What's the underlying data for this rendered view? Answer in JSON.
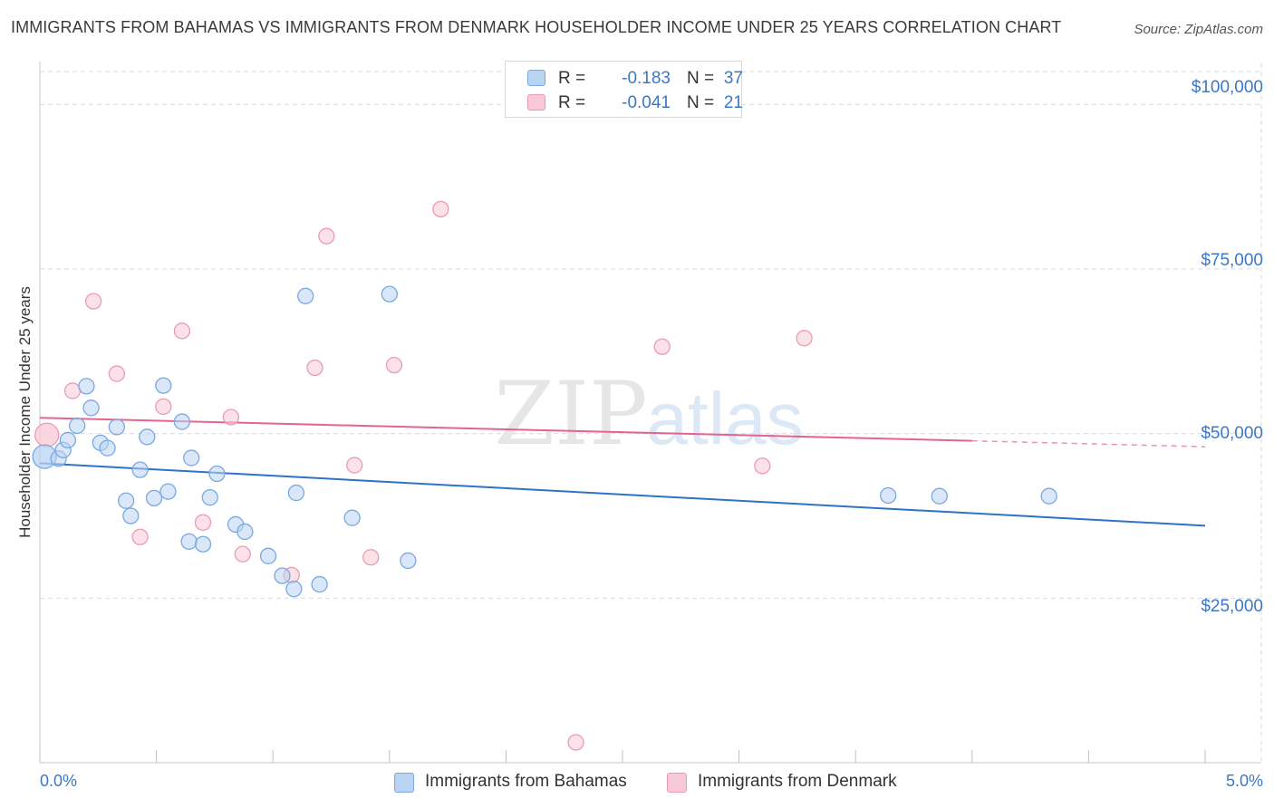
{
  "title": "IMMIGRANTS FROM BAHAMAS VS IMMIGRANTS FROM DENMARK HOUSEHOLDER INCOME UNDER 25 YEARS CORRELATION CHART",
  "source": "Source: ZipAtlas.com",
  "watermark": {
    "zip": "ZIP",
    "atlas": "atlas"
  },
  "legend": {
    "bahamas": {
      "r_label": "R =",
      "r_value": "-0.183",
      "n_label": "N =",
      "n_value": "37"
    },
    "denmark": {
      "r_label": "R =",
      "r_value": "-0.041",
      "n_label": "N =",
      "n_value": "21"
    }
  },
  "colors": {
    "bahamas_fill": "#b9d3f3",
    "bahamas_stroke": "#7aa8e0",
    "bahamas_line": "#2f72c8",
    "denmark_fill": "#f8c8d6",
    "denmark_stroke": "#ec9ab4",
    "denmark_line": "#e4638f",
    "grid": "#d9d9d9",
    "tick_label": "#3b78c4"
  },
  "chart_data": {
    "type": "scatter",
    "title": "IMMIGRANTS FROM BAHAMAS VS IMMIGRANTS FROM DENMARK HOUSEHOLDER INCOME UNDER 25 YEARS CORRELATION CHART",
    "xlabel": "",
    "ylabel": "Householder Income Under 25 years",
    "xlim": [
      0,
      5
    ],
    "ylim": [
      0,
      105000
    ],
    "x_tick_labels": [
      "0.0%",
      "5.0%"
    ],
    "y_ticks": [
      25000,
      50000,
      75000,
      100000
    ],
    "y_tick_labels": [
      "$25,000",
      "$50,000",
      "$75,000",
      "$100,000"
    ],
    "grid": true,
    "legend_position": "top-center",
    "series": [
      {
        "name": "Immigrants from Bahamas",
        "points": [
          [
            0.02,
            46500
          ],
          [
            0.08,
            46200
          ],
          [
            0.1,
            47500
          ],
          [
            0.12,
            49000
          ],
          [
            0.16,
            51200
          ],
          [
            0.2,
            57200
          ],
          [
            0.22,
            53900
          ],
          [
            0.26,
            48600
          ],
          [
            0.29,
            47800
          ],
          [
            0.33,
            51000
          ],
          [
            0.37,
            39800
          ],
          [
            0.39,
            37500
          ],
          [
            0.43,
            44500
          ],
          [
            0.46,
            49500
          ],
          [
            0.49,
            40200
          ],
          [
            0.53,
            57300
          ],
          [
            0.55,
            41200
          ],
          [
            0.61,
            51800
          ],
          [
            0.64,
            33600
          ],
          [
            0.65,
            46300
          ],
          [
            0.7,
            33200
          ],
          [
            0.73,
            40300
          ],
          [
            0.76,
            43900
          ],
          [
            0.84,
            36200
          ],
          [
            0.88,
            35100
          ],
          [
            0.98,
            31400
          ],
          [
            1.04,
            28400
          ],
          [
            1.09,
            26400
          ],
          [
            1.1,
            41000
          ],
          [
            1.14,
            70900
          ],
          [
            1.2,
            27100
          ],
          [
            1.34,
            37200
          ],
          [
            1.5,
            71200
          ],
          [
            1.58,
            30700
          ],
          [
            3.64,
            40600
          ],
          [
            3.86,
            40500
          ],
          [
            4.33,
            40500
          ]
        ],
        "trend": [
          [
            0,
            45500
          ],
          [
            5,
            36000
          ]
        ]
      },
      {
        "name": "Immigrants from Denmark",
        "points": [
          [
            0.03,
            49800
          ],
          [
            0.14,
            56500
          ],
          [
            0.23,
            70100
          ],
          [
            0.33,
            59100
          ],
          [
            0.43,
            34300
          ],
          [
            0.53,
            54100
          ],
          [
            0.61,
            65600
          ],
          [
            0.7,
            36500
          ],
          [
            0.82,
            52500
          ],
          [
            0.87,
            31700
          ],
          [
            1.08,
            28500
          ],
          [
            1.18,
            60000
          ],
          [
            1.23,
            80000
          ],
          [
            1.35,
            45200
          ],
          [
            1.42,
            31200
          ],
          [
            1.52,
            60400
          ],
          [
            1.72,
            84100
          ],
          [
            2.3,
            3100
          ],
          [
            2.67,
            63200
          ],
          [
            3.1,
            45100
          ],
          [
            3.28,
            64500
          ]
        ],
        "trend": [
          [
            0,
            52400
          ],
          [
            4,
            48900
          ]
        ],
        "trend_dashed_to": [
          5,
          48000
        ]
      }
    ]
  },
  "axis_labels": {
    "x_left": "0.0%",
    "x_right": "5.0%",
    "y_title": "Householder Income Under 25 years"
  },
  "bottom_legend": {
    "bahamas": "Immigrants from Bahamas",
    "denmark": "Immigrants from Denmark"
  }
}
